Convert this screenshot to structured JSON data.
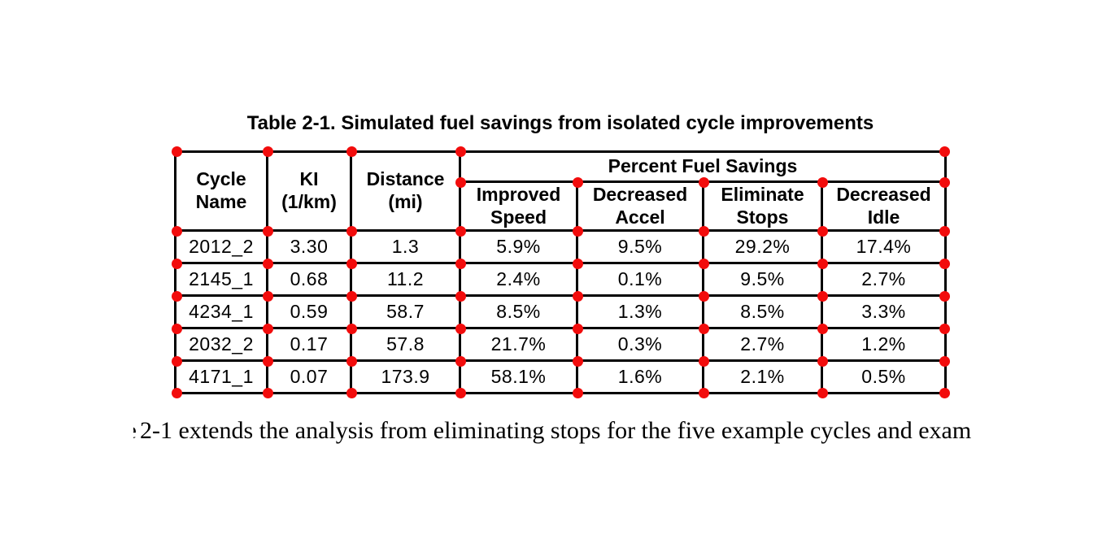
{
  "title": "Table 2-1. Simulated fuel savings from isolated cycle improvements",
  "table": {
    "column_headers": [
      {
        "lines": [
          "Cycle",
          "Name"
        ]
      },
      {
        "lines": [
          "KI",
          "(1/km)"
        ]
      },
      {
        "lines": [
          "Distance",
          "(mi)"
        ]
      }
    ],
    "group_header": "Percent Fuel Savings",
    "sub_headers": [
      {
        "lines": [
          "Improved",
          "Speed"
        ]
      },
      {
        "lines": [
          "Decreased",
          "Accel"
        ]
      },
      {
        "lines": [
          "Eliminate",
          "Stops"
        ]
      },
      {
        "lines": [
          "Decreased",
          "Idle"
        ]
      }
    ],
    "rows": [
      {
        "cycle_name": "2012_2",
        "ki": "3.30",
        "distance_mi": "1.3",
        "improved_speed": "5.9%",
        "decreased_accel": "9.5%",
        "eliminate_stops": "29.2%",
        "decreased_idle": "17.4%"
      },
      {
        "cycle_name": "2145_1",
        "ki": "0.68",
        "distance_mi": "11.2",
        "improved_speed": "2.4%",
        "decreased_accel": "0.1%",
        "eliminate_stops": "9.5%",
        "decreased_idle": "2.7%"
      },
      {
        "cycle_name": "4234_1",
        "ki": "0.59",
        "distance_mi": "58.7",
        "improved_speed": "8.5%",
        "decreased_accel": "1.3%",
        "eliminate_stops": "8.5%",
        "decreased_idle": "3.3%"
      },
      {
        "cycle_name": "2032_2",
        "ki": "0.17",
        "distance_mi": "57.8",
        "improved_speed": "21.7%",
        "decreased_accel": "0.3%",
        "eliminate_stops": "2.7%",
        "decreased_idle": "1.2%"
      },
      {
        "cycle_name": "4171_1",
        "ki": "0.07",
        "distance_mi": "173.9",
        "improved_speed": "58.1%",
        "decreased_accel": "1.6%",
        "eliminate_stops": "2.1%",
        "decreased_idle": "0.5%"
      }
    ]
  },
  "annotations": {
    "marker_name": "cell-corner-marker",
    "marker_color": "#f20c0c"
  },
  "body_text": {
    "clipped_word_fragment": "e",
    "visible_text": "2-1 extends the analysis from eliminating stops for the five example cycles and exam"
  }
}
